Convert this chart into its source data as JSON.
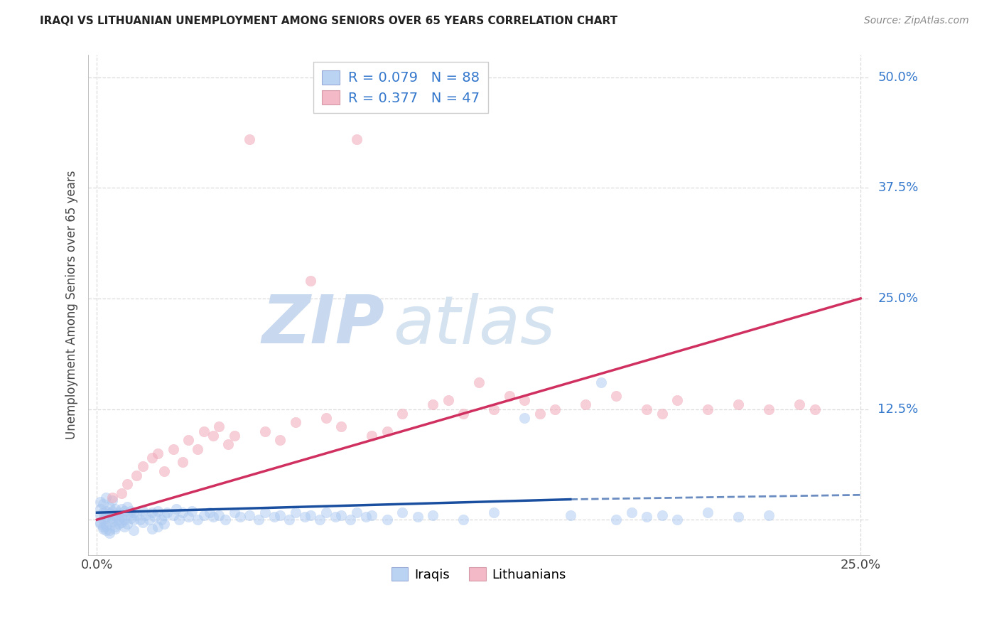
{
  "title": "IRAQI VS LITHUANIAN UNEMPLOYMENT AMONG SENIORS OVER 65 YEARS CORRELATION CHART",
  "source": "Source: ZipAtlas.com",
  "ylabel": "Unemployment Among Seniors over 65 years",
  "xlim": [
    -0.003,
    0.253
  ],
  "ylim": [
    -0.04,
    0.525
  ],
  "iraqi_R": 0.079,
  "iraqi_N": 88,
  "lithuanian_R": 0.377,
  "lithuanian_N": 47,
  "iraqi_scatter_color": "#aac8f0",
  "lithuanian_scatter_color": "#f0a8b8",
  "iraqi_line_color": "#1a4fa0",
  "lithuanian_line_color": "#d03060",
  "right_label_color": "#3377cc",
  "legend_R_N_color": "#3377cc",
  "legend_R_text_color": "#222222",
  "grid_color": "#cccccc",
  "background_color": "#ffffff",
  "ytick_vals": [
    0.0,
    0.125,
    0.25,
    0.375,
    0.5
  ],
  "xtick_vals": [
    0.0,
    0.25
  ],
  "iraqi_x": [
    0.001,
    0.001,
    0.001,
    0.002,
    0.002,
    0.002,
    0.003,
    0.003,
    0.003,
    0.004,
    0.004,
    0.004,
    0.005,
    0.005,
    0.005,
    0.006,
    0.006,
    0.007,
    0.007,
    0.008,
    0.008,
    0.009,
    0.009,
    0.01,
    0.01,
    0.011,
    0.011,
    0.012,
    0.012,
    0.013,
    0.014,
    0.015,
    0.016,
    0.017,
    0.018,
    0.019,
    0.02,
    0.021,
    0.022,
    0.023,
    0.025,
    0.026,
    0.027,
    0.028,
    0.03,
    0.031,
    0.033,
    0.035,
    0.037,
    0.038,
    0.04,
    0.042,
    0.045,
    0.047,
    0.05,
    0.053,
    0.055,
    0.058,
    0.06,
    0.063,
    0.065,
    0.068,
    0.07,
    0.073,
    0.075,
    0.078,
    0.08,
    0.083,
    0.085,
    0.088,
    0.09,
    0.095,
    0.1,
    0.105,
    0.11,
    0.12,
    0.13,
    0.14,
    0.155,
    0.165,
    0.17,
    0.175,
    0.18,
    0.185,
    0.19,
    0.2,
    0.21,
    0.22
  ],
  "iraqi_y": [
    0.005,
    0.012,
    0.02,
    0.0,
    0.008,
    0.018,
    0.003,
    0.01,
    0.025,
    0.0,
    0.007,
    0.015,
    0.002,
    0.01,
    0.022,
    0.005,
    0.012,
    0.0,
    0.008,
    0.003,
    0.012,
    0.0,
    0.01,
    0.005,
    0.015,
    0.002,
    0.01,
    0.0,
    0.008,
    0.005,
    0.0,
    0.01,
    0.005,
    0.0,
    0.008,
    0.003,
    0.01,
    0.0,
    0.005,
    0.008,
    0.005,
    0.012,
    0.0,
    0.008,
    0.003,
    0.01,
    0.0,
    0.005,
    0.008,
    0.003,
    0.005,
    0.0,
    0.008,
    0.003,
    0.005,
    0.0,
    0.008,
    0.003,
    0.005,
    0.0,
    0.008,
    0.003,
    0.005,
    0.0,
    0.008,
    0.003,
    0.005,
    0.0,
    0.008,
    0.003,
    0.005,
    0.0,
    0.008,
    0.003,
    0.005,
    0.0,
    0.008,
    0.115,
    0.005,
    0.155,
    0.0,
    0.008,
    0.003,
    0.005,
    0.0,
    0.008,
    0.003,
    0.005
  ],
  "iraqi_negative_y": [
    -0.005,
    -0.008,
    -0.012,
    -0.003,
    -0.01,
    -0.015,
    -0.007,
    -0.002,
    -0.008,
    -0.005,
    -0.012,
    -0.003,
    -0.01,
    -0.008,
    -0.005,
    -0.012,
    -0.003,
    -0.01,
    -0.008,
    -0.005
  ],
  "lith_x": [
    0.005,
    0.008,
    0.01,
    0.013,
    0.015,
    0.018,
    0.02,
    0.022,
    0.025,
    0.028,
    0.03,
    0.033,
    0.035,
    0.038,
    0.04,
    0.043,
    0.045,
    0.05,
    0.055,
    0.06,
    0.065,
    0.07,
    0.075,
    0.08,
    0.085,
    0.09,
    0.095,
    0.1,
    0.11,
    0.115,
    0.12,
    0.125,
    0.13,
    0.135,
    0.14,
    0.145,
    0.15,
    0.16,
    0.17,
    0.18,
    0.185,
    0.19,
    0.2,
    0.21,
    0.22,
    0.23,
    0.235
  ],
  "lith_y": [
    0.025,
    0.03,
    0.04,
    0.05,
    0.06,
    0.07,
    0.075,
    0.055,
    0.08,
    0.065,
    0.09,
    0.08,
    0.1,
    0.095,
    0.105,
    0.085,
    0.095,
    0.43,
    0.1,
    0.09,
    0.11,
    0.27,
    0.115,
    0.105,
    0.43,
    0.095,
    0.1,
    0.12,
    0.13,
    0.135,
    0.12,
    0.155,
    0.125,
    0.14,
    0.135,
    0.12,
    0.125,
    0.13,
    0.14,
    0.125,
    0.12,
    0.135,
    0.125,
    0.13,
    0.125,
    0.13,
    0.125
  ],
  "iraqi_line_x0": 0.0,
  "iraqi_line_x_solid_end": 0.155,
  "iraqi_line_x1": 0.25,
  "iraqi_line_y0": 0.008,
  "iraqi_line_y_solid_end": 0.023,
  "iraqi_line_y1": 0.028,
  "lith_line_x0": 0.0,
  "lith_line_x1": 0.25,
  "lith_line_y0": 0.0,
  "lith_line_y1": 0.25
}
